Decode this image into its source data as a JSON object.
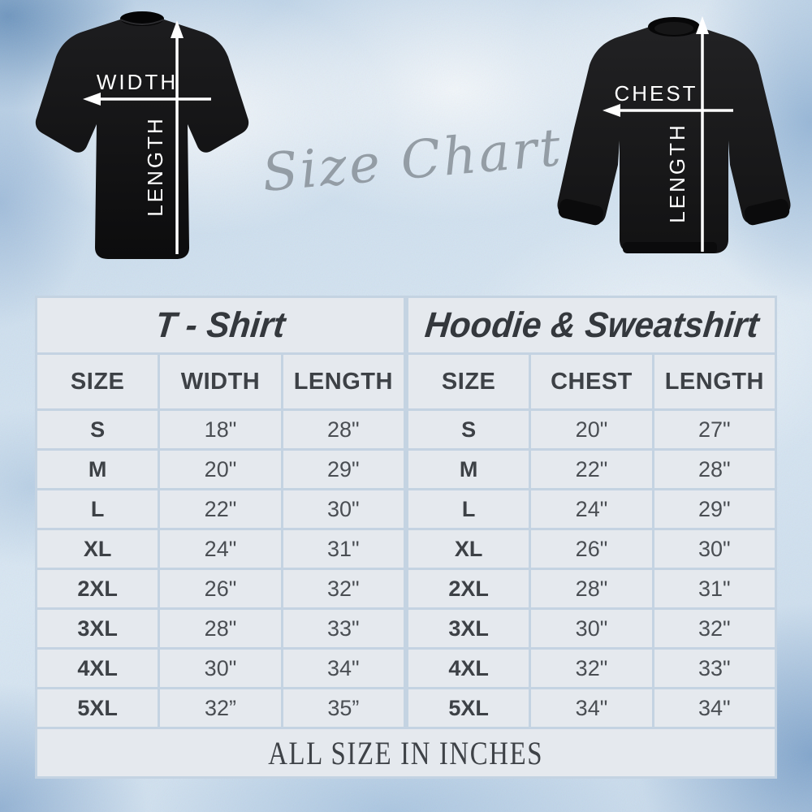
{
  "script_title": "Size Chart",
  "diagrams": {
    "tshirt": {
      "width_label": "WIDTH",
      "length_label": "LENGTH"
    },
    "sweatshirt": {
      "chest_label": "CHEST",
      "length_label": "LENGTH"
    }
  },
  "tables": [
    {
      "title": "T - Shirt",
      "columns": [
        "SIZE",
        "WIDTH",
        "LENGTH"
      ],
      "rows": [
        [
          "S",
          "18\"",
          "28\""
        ],
        [
          "M",
          "20\"",
          "29\""
        ],
        [
          "L",
          "22\"",
          "30\""
        ],
        [
          "XL",
          "24\"",
          "31\""
        ],
        [
          "2XL",
          "26\"",
          "32\""
        ],
        [
          "3XL",
          "28\"",
          "33\""
        ],
        [
          "4XL",
          "30\"",
          "34\""
        ],
        [
          "5XL",
          "32”",
          "35”"
        ]
      ]
    },
    {
      "title": "Hoodie & Sweatshirt",
      "columns": [
        "SIZE",
        "CHEST",
        "LENGTH"
      ],
      "rows": [
        [
          "S",
          "20\"",
          "27\""
        ],
        [
          "M",
          "22\"",
          "28\""
        ],
        [
          "L",
          "24\"",
          "29\""
        ],
        [
          "XL",
          "26\"",
          "30\""
        ],
        [
          "2XL",
          "28\"",
          "31\""
        ],
        [
          "3XL",
          "30\"",
          "32\""
        ],
        [
          "4XL",
          "32\"",
          "33\""
        ],
        [
          "5XL",
          "34\"",
          "34\""
        ]
      ]
    }
  ],
  "footer": "ALL SIZE IN INCHES",
  "colors": {
    "cell_bg": "#e5e9ee",
    "grid_line": "#c4d3e2",
    "text_dark": "#34383d",
    "script_gray": "#8e979f",
    "garment_black": "#141414",
    "arrow_white": "#ffffff",
    "background_blue": "#cfe0ef"
  }
}
